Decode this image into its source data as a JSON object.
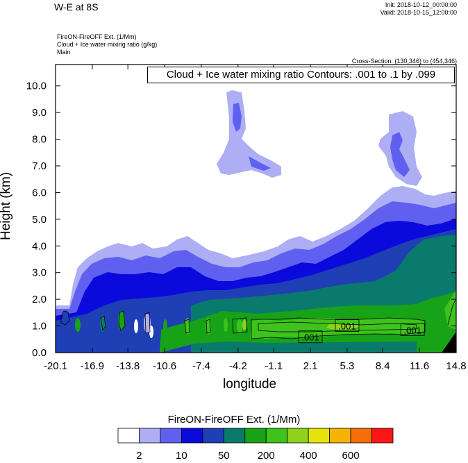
{
  "header": {
    "title": "W-E at 8S",
    "init": "Init: 2018-10-12_00:00:00",
    "valid": "Valid: 2018-10-15_12:00:00",
    "field1": "FireON-FireOFF Ext.   (1/Mm)",
    "field2": "Cloud + Ice water mixing ratio   (g/kg)",
    "field3": "Main",
    "cross_section": "Cross-Section: (130,346) to (454,346)",
    "contour_box": "Cloud + Ice water mixing ratio Contours: .001 to .1 by .099"
  },
  "chart_data": {
    "type": "heatmap",
    "xlabel": "longitude",
    "ylabel": "Height (km)",
    "xlim": [
      -20.1,
      14.8
    ],
    "ylim": [
      0.0,
      10.8
    ],
    "x_ticks": [
      "-20.1",
      "-16.9",
      "-13.8",
      "-10.6",
      "-7.4",
      "-4.2",
      "-1.1",
      "2.1",
      "5.3",
      "8.4",
      "11.6",
      "14.8"
    ],
    "y_ticks": [
      "0.0",
      "1.0",
      "2.0",
      "3.0",
      "4.0",
      "5.0",
      "6.0",
      "7.0",
      "8.0",
      "9.0",
      "10.0"
    ],
    "contour_labels": [
      {
        "text": ".001",
        "x": 2.1,
        "y": 0.58
      },
      {
        "text": ".001",
        "x": 5.3,
        "y": 1.0
      },
      {
        "text": ".001",
        "x": 11.0,
        "y": 0.85
      }
    ],
    "colorbar": {
      "title": "FireON-FireOFF Ext.  (1/Mm)",
      "tick_labels": [
        "2",
        "10",
        "50",
        "200",
        "400",
        "600"
      ],
      "colors": [
        "#ffffff",
        "#aeaef5",
        "#6060f0",
        "#0a0adc",
        "#1f3fb4",
        "#0a7a6c",
        "#18a218",
        "#3ec21c",
        "#8ed21c",
        "#e4e40c",
        "#f5b405",
        "#f56e0a",
        "#ff1414"
      ]
    }
  }
}
